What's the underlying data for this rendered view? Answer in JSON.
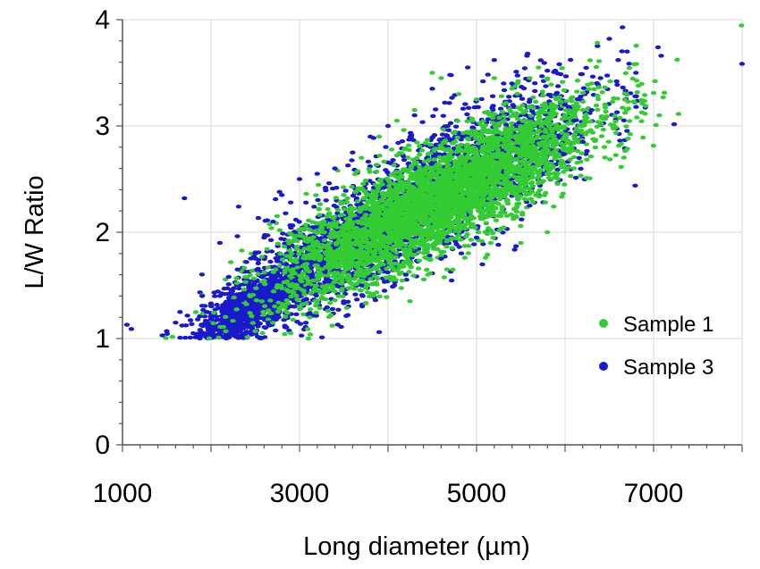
{
  "chart_data": {
    "type": "scatter",
    "xlabel": "Long diameter (µm)",
    "ylabel": "L/W Ratio",
    "xlim": [
      1000,
      8000
    ],
    "ylim": [
      0,
      4
    ],
    "x_tick_labels": [
      "1000",
      "3000",
      "5000",
      "7000"
    ],
    "x_ticks": [
      1000,
      3000,
      5000,
      7000
    ],
    "x_gridlines": [
      1000,
      2000,
      3000,
      4000,
      5000,
      6000,
      7000,
      8000
    ],
    "y_ticks": [
      0,
      1,
      2,
      3,
      4
    ],
    "y_tick_labels": [
      "0",
      "1",
      "2",
      "3",
      "4"
    ],
    "grid": true,
    "legend_position": "bottom-right",
    "series": [
      {
        "name": "Sample 3",
        "color": "#1a1acc",
        "points": [
          [
            1050,
            1.13
          ],
          [
            1100,
            1.09
          ],
          [
            1450,
            1.03
          ],
          [
            1500,
            1.07
          ],
          [
            1600,
            1.15
          ],
          [
            1650,
            1.25
          ],
          [
            1700,
            2.32
          ],
          [
            1800,
            1.05
          ],
          [
            1850,
            1.18
          ],
          [
            1900,
            1.4
          ],
          [
            1950,
            1.25
          ],
          [
            2000,
            1.33
          ],
          [
            2050,
            1.08
          ],
          [
            2100,
            1.9
          ],
          [
            2150,
            1.47
          ],
          [
            2200,
            1.58
          ],
          [
            2250,
            1.2
          ],
          [
            2300,
            1.65
          ],
          [
            2350,
            1.36
          ],
          [
            2400,
            1.72
          ],
          [
            2450,
            1.28
          ],
          [
            2500,
            1.8
          ],
          [
            2550,
            1.5
          ],
          [
            2600,
            1.95
          ],
          [
            2650,
            1.15
          ],
          [
            2700,
            2.1
          ],
          [
            2750,
            1.38
          ],
          [
            2800,
            2.35
          ],
          [
            2850,
            1.7
          ],
          [
            2900,
            2.28
          ],
          [
            2950,
            1.55
          ],
          [
            3000,
            2.5
          ],
          [
            3100,
            1.48
          ],
          [
            3200,
            2.55
          ],
          [
            3300,
            2.3
          ],
          [
            3400,
            2.6
          ],
          [
            3500,
            1.35
          ],
          [
            3600,
            2.75
          ],
          [
            3700,
            1.5
          ],
          [
            3800,
            2.9
          ],
          [
            3900,
            1.06
          ],
          [
            4000,
            3.0
          ],
          [
            4200,
            1.6
          ],
          [
            4300,
            3.1
          ],
          [
            4500,
            3.35
          ],
          [
            4600,
            1.75
          ],
          [
            4700,
            3.48
          ],
          [
            4900,
            3.55
          ],
          [
            5000,
            1.95
          ],
          [
            5200,
            3.62
          ],
          [
            5400,
            3.4
          ],
          [
            5600,
            2.25
          ],
          [
            5800,
            3.52
          ],
          [
            5900,
            3.3
          ],
          [
            6000,
            3.2
          ],
          [
            6100,
            3.05
          ],
          [
            6200,
            2.85
          ],
          [
            6300,
            3.15
          ],
          [
            6400,
            3.45
          ],
          [
            6500,
            3.82
          ],
          [
            6600,
            3.62
          ],
          [
            6700,
            3.7
          ],
          [
            6800,
            3.5
          ],
          [
            7050,
            3.74
          ]
        ]
      },
      {
        "name": "Sample 1",
        "color": "#33cc33",
        "points": [
          [
            2500,
            1.07
          ],
          [
            2700,
            1.15
          ],
          [
            2900,
            1.05
          ],
          [
            3000,
            1.3
          ],
          [
            3100,
            1.0
          ],
          [
            3200,
            1.45
          ],
          [
            3400,
            1.62
          ],
          [
            3500,
            2.35
          ],
          [
            3600,
            1.75
          ],
          [
            3700,
            2.7
          ],
          [
            3800,
            1.9
          ],
          [
            3900,
            2.9
          ],
          [
            4000,
            2.05
          ],
          [
            4100,
            3.05
          ],
          [
            4200,
            2.15
          ],
          [
            4300,
            3.15
          ],
          [
            4400,
            2.25
          ],
          [
            4500,
            3.5
          ],
          [
            4600,
            3.45
          ],
          [
            4700,
            2.4
          ],
          [
            4800,
            3.3
          ],
          [
            4900,
            2.55
          ],
          [
            5000,
            3.25
          ],
          [
            5200,
            3.45
          ],
          [
            5400,
            3.35
          ],
          [
            5500,
            1.9
          ],
          [
            5600,
            3.45
          ],
          [
            5700,
            3.55
          ],
          [
            5800,
            2.0
          ],
          [
            5900,
            3.25
          ],
          [
            6000,
            3.1
          ],
          [
            6100,
            2.6
          ],
          [
            6200,
            3.0
          ],
          [
            6300,
            3.4
          ],
          [
            6900,
            3.29
          ],
          [
            7000,
            3.31
          ]
        ]
      }
    ],
    "dense_regions": [
      {
        "series": "Sample 3",
        "center": [
          2450,
          1.3
        ],
        "x_spread": 280,
        "y_spread": 0.22,
        "count": 900,
        "label": "dense-region-sample-3-low"
      },
      {
        "series": "Sample 3",
        "center": [
          3600,
          1.9
        ],
        "x_spread": 650,
        "y_spread": 0.45,
        "count": 1400,
        "label": "dense-region-sample-3-mid"
      },
      {
        "series": "Sample 3",
        "center": [
          5000,
          2.6
        ],
        "x_spread": 700,
        "y_spread": 0.55,
        "count": 1200,
        "label": "dense-region-sample-3-high"
      },
      {
        "series": "Sample 1",
        "center": [
          4550,
          2.3
        ],
        "x_spread": 900,
        "y_spread": 0.45,
        "count": 3600,
        "label": "dense-region-sample-1"
      }
    ]
  }
}
